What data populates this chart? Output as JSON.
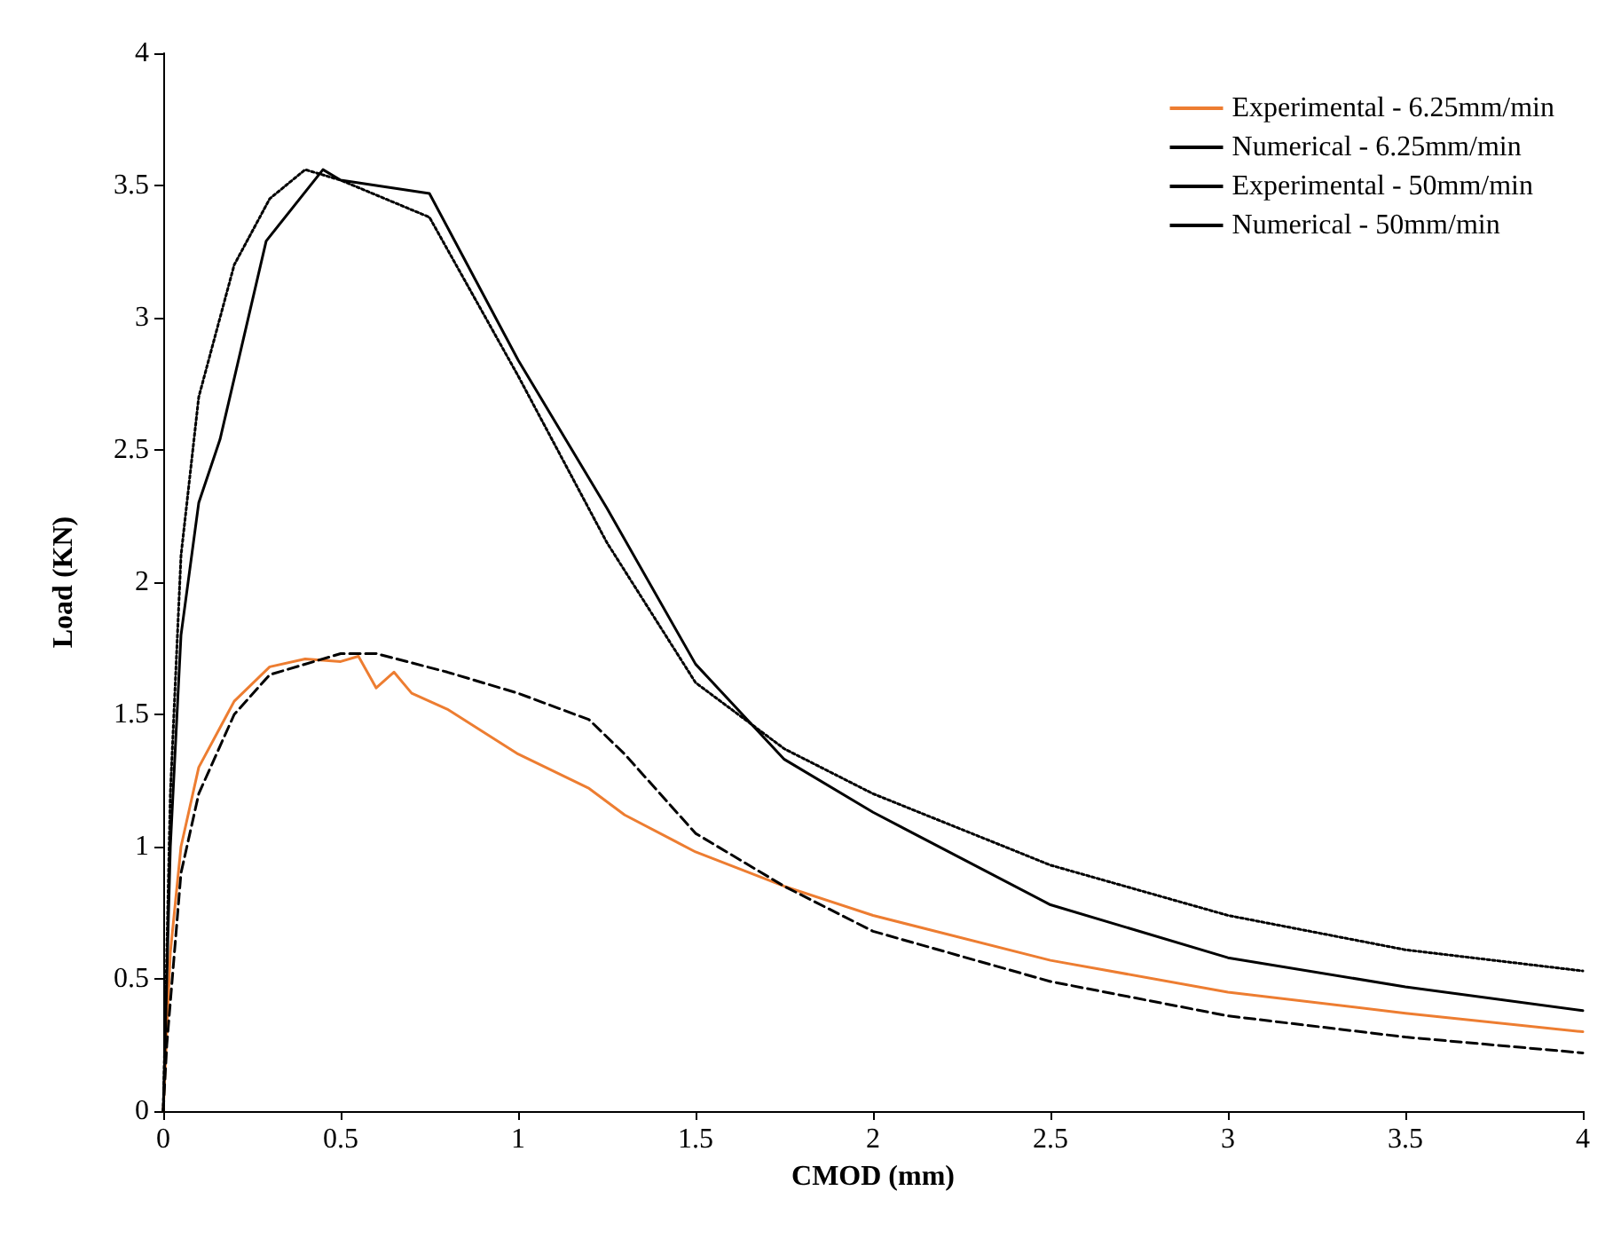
{
  "chart_data": {
    "type": "line",
    "xlabel": "CMOD (mm)",
    "ylabel": "Load (KN)",
    "xlim": [
      0,
      4
    ],
    "xticks": [
      0,
      0.5,
      1,
      1.5,
      2,
      2.5,
      3,
      3.5,
      4
    ],
    "ylim": [
      0,
      4
    ],
    "yticks": [
      0,
      0.5,
      1,
      1.5,
      2,
      2.5,
      3,
      3.5,
      4
    ],
    "grid": false,
    "legend": "top right",
    "marker": "none",
    "series": [
      {
        "name": "Experimental - 6.25mm/min",
        "color": "#ed7d31",
        "line_style": "solid",
        "x": [
          0,
          0.02,
          0.05,
          0.1,
          0.2,
          0.3,
          0.4,
          0.5,
          0.55,
          0.6,
          0.65,
          0.7,
          0.8,
          1,
          1.2,
          1.3,
          1.5,
          1.75,
          2,
          2.5,
          3,
          3.5,
          4
        ],
        "values": [
          0,
          0.6,
          1.0,
          1.3,
          1.55,
          1.68,
          1.71,
          1.7,
          1.72,
          1.6,
          1.66,
          1.58,
          1.52,
          1.35,
          1.22,
          1.12,
          0.98,
          0.85,
          0.74,
          0.57,
          0.45,
          0.37,
          0.3
        ]
      },
      {
        "name": "Numerical - 6.25mm/min",
        "color": "#000000",
        "line_style": "dashed",
        "x": [
          0,
          0.01,
          0.05,
          0.1,
          0.2,
          0.3,
          0.5,
          0.6,
          0.8,
          1,
          1.2,
          1.3,
          1.5,
          1.75,
          2,
          2.5,
          3,
          3.5,
          4
        ],
        "values": [
          0,
          0.25,
          0.9,
          1.2,
          1.5,
          1.65,
          1.73,
          1.73,
          1.66,
          1.58,
          1.48,
          1.35,
          1.05,
          0.85,
          0.68,
          0.49,
          0.36,
          0.28,
          0.22
        ]
      },
      {
        "name": "Experimental - 50mm/min",
        "color": "#000000",
        "line_style": "solid",
        "x": [
          0,
          0.02,
          0.05,
          0.1,
          0.16,
          0.29,
          0.45,
          0.5,
          0.75,
          1,
          1.25,
          1.5,
          1.75,
          2,
          2.5,
          3,
          3.5,
          4
        ],
        "values": [
          0,
          1.0,
          1.8,
          2.3,
          2.54,
          3.29,
          3.56,
          3.52,
          3.47,
          2.84,
          2.28,
          1.69,
          1.33,
          1.13,
          0.78,
          0.58,
          0.47,
          0.38
        ]
      },
      {
        "name": "Numerical - 50mm/min",
        "color": "#000000",
        "line_style": "dotted",
        "x": [
          0,
          0.02,
          0.05,
          0.1,
          0.2,
          0.3,
          0.4,
          0.5,
          0.75,
          1,
          1.25,
          1.5,
          1.75,
          2,
          2.5,
          3,
          3.5,
          4
        ],
        "values": [
          0,
          1.2,
          2.1,
          2.7,
          3.2,
          3.45,
          3.56,
          3.52,
          3.38,
          2.78,
          2.15,
          1.62,
          1.37,
          1.2,
          0.93,
          0.74,
          0.61,
          0.53
        ]
      }
    ]
  }
}
